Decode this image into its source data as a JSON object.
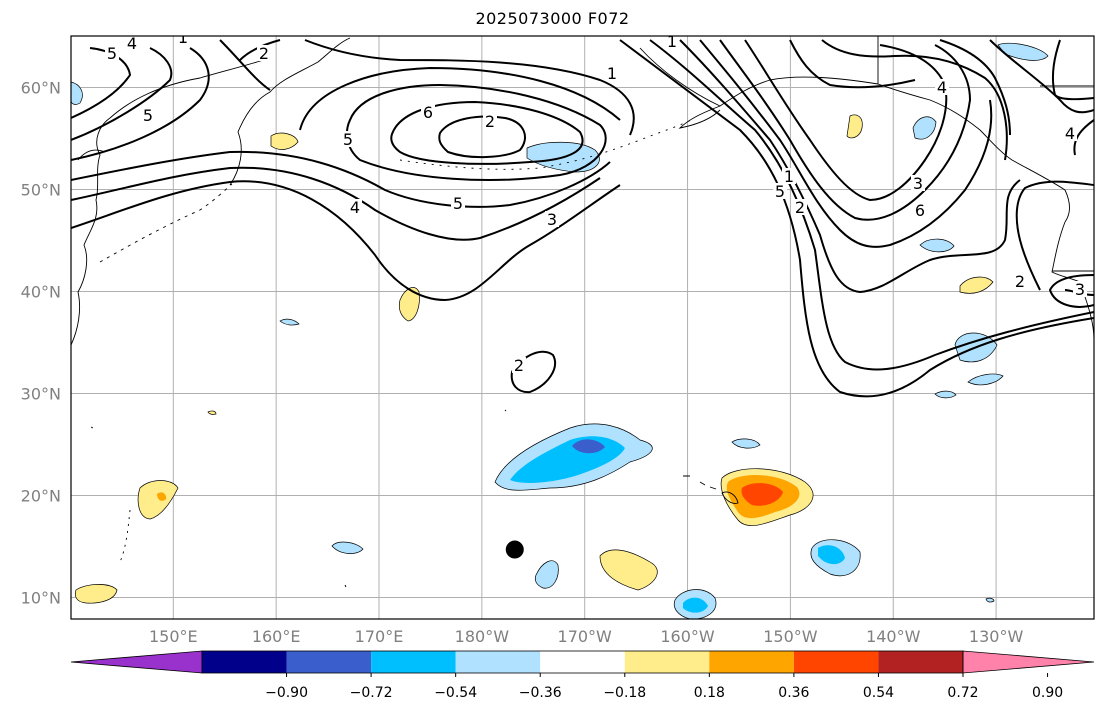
{
  "title": "2025073000 F072",
  "lat_labels": [
    {
      "text": "60°N",
      "lat": 60
    },
    {
      "text": "50°N",
      "lat": 50
    },
    {
      "text": "40°N",
      "lat": 40
    },
    {
      "text": "30°N",
      "lat": 30
    },
    {
      "text": "20°N",
      "lat": 20
    },
    {
      "text": "10°N",
      "lat": 10
    }
  ],
  "lon_labels": [
    {
      "text": "150°E",
      "lon": 150
    },
    {
      "text": "160°E",
      "lon": 160
    },
    {
      "text": "170°E",
      "lon": 170
    },
    {
      "text": "180°W",
      "lon": 180
    },
    {
      "text": "170°W",
      "lon": 190
    },
    {
      "text": "160°W",
      "lon": 200
    },
    {
      "text": "150°W",
      "lon": 210
    },
    {
      "text": "140°W",
      "lon": 220
    },
    {
      "text": "130°W",
      "lon": 230
    }
  ],
  "colorbar": {
    "ticks": [
      "−0.90",
      "−0.72",
      "−0.54",
      "−0.36",
      "−0.18",
      "0.18",
      "0.36",
      "0.54",
      "0.72",
      "0.90"
    ],
    "colors": [
      "#9932cc",
      "#00008b",
      "#3a5fcd",
      "#00bfff",
      "#b0e2ff",
      "#ffffff",
      "#ffec8b",
      "#ffa500",
      "#ff4500",
      "#b22222",
      "#ff82ab"
    ]
  },
  "contour_labels": [
    "5",
    "4",
    "6",
    "5",
    "2",
    "5",
    "6",
    "2",
    "4",
    "5",
    "3",
    "2",
    "1",
    "1",
    "1",
    "5",
    "2",
    "3",
    "6",
    "4",
    "2",
    "3",
    "4",
    "1"
  ],
  "marker": {
    "name": "black-dot",
    "lat": 14.7,
    "lon": 183.2
  },
  "colors": {
    "contour": "#000000",
    "grid": "#b0b0b0",
    "coast": "#000000"
  }
}
